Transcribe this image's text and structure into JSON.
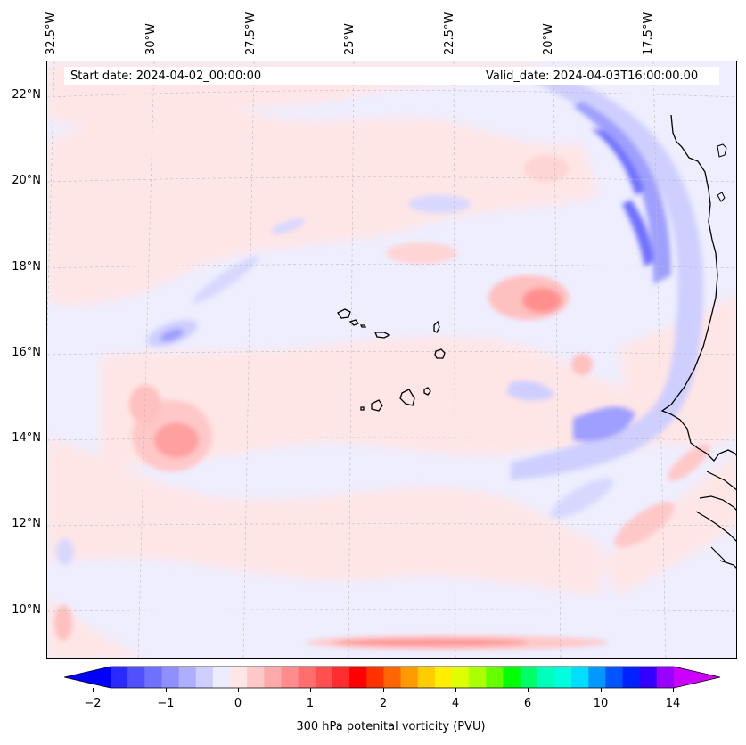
{
  "map": {
    "title_start": "Start date: 2024-04-02_00:00:00",
    "title_valid": "Valid_date: 2024-04-03T16:00:00.00",
    "lon_labels": [
      "32.5°W",
      "30°W",
      "27.5°W",
      "25°W",
      "22.5°W",
      "20°W",
      "17.5°W"
    ],
    "lat_labels": [
      "22°N",
      "20°N",
      "18°N",
      "16°N",
      "14°N",
      "12°N",
      "10°N"
    ],
    "variable": "300 hPa potential vorticity",
    "features": [
      "Cape Verde islands",
      "West African coastline"
    ]
  },
  "colorbar": {
    "label": "300 hPa potenital vorticity (PVU)",
    "ticks": [
      "−2",
      "−1",
      "0",
      "1",
      "2",
      "4",
      "6",
      "10",
      "14"
    ],
    "colors": [
      "#0000ff",
      "#2a2aff",
      "#5050ff",
      "#7070ff",
      "#8f8fff",
      "#aeaeff",
      "#cfcfff",
      "#ececff",
      "#ffe6e6",
      "#ffc8c8",
      "#ffaaaa",
      "#ff8c8c",
      "#ff6e6e",
      "#ff5050",
      "#ff2e2e",
      "#ff0000",
      "#ff3300",
      "#ff6600",
      "#ff9900",
      "#ffcc00",
      "#ffee00",
      "#ddff00",
      "#aaff00",
      "#66ff00",
      "#00ff00",
      "#00ff66",
      "#00ffbb",
      "#00ffdd",
      "#00ddff",
      "#0099ff",
      "#0055ff",
      "#0022ff",
      "#3300ff",
      "#9900ff",
      "#cc00ff"
    ]
  }
}
